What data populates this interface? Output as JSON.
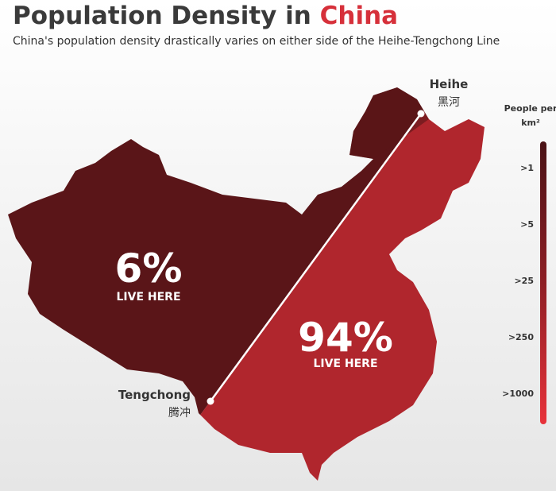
{
  "header": {
    "title": "Population Density in",
    "title_highlight": "China",
    "subtitle": "China's population density drastically varies on either side of the Heihe-Tengchong Line"
  },
  "cities": [
    {
      "name": "Heihe",
      "native": "黑河"
    },
    {
      "name": "Tengchong",
      "native": "腾冲"
    }
  ],
  "regions": [
    {
      "share": "6%",
      "label": "LIVE HERE"
    },
    {
      "share": "94%",
      "label": "LIVE HERE"
    }
  ],
  "legend": {
    "title": "People per km²",
    "labels": [
      ">1",
      ">5",
      ">25",
      ">250",
      ">1000"
    ]
  }
}
